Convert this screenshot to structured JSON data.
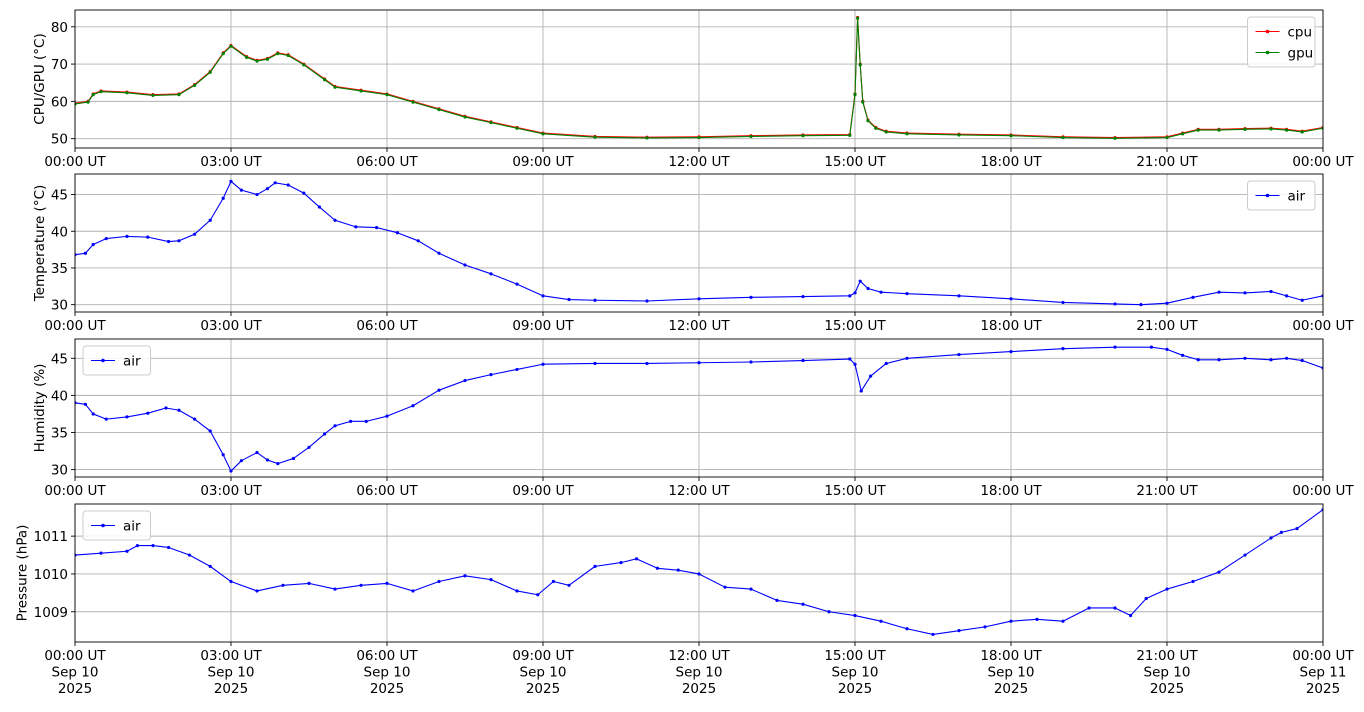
{
  "chart_data": [
    {
      "type": "line",
      "ylabel": "CPU/GPU (°C)",
      "xlim": [
        0,
        24
      ],
      "ylim": [
        47.5,
        84.5
      ],
      "yticks": [
        50,
        60,
        70,
        80
      ],
      "xtick_labels": [
        "00:00 UT",
        "03:00 UT",
        "06:00 UT",
        "09:00 UT",
        "12:00 UT",
        "15:00 UT",
        "18:00 UT",
        "21:00 UT",
        "00:00 UT"
      ],
      "grid": true,
      "legend": "top-right",
      "series": [
        {
          "name": "cpu",
          "color": "#ff0000",
          "x": [
            0,
            0.25,
            0.35,
            0.5,
            1.0,
            1.5,
            2.0,
            2.3,
            2.6,
            2.85,
            3.0,
            3.3,
            3.5,
            3.7,
            3.9,
            4.1,
            4.4,
            4.8,
            5.0,
            5.5,
            6.0,
            6.5,
            7.0,
            7.5,
            8.0,
            8.5,
            9.0,
            10,
            11,
            12,
            13,
            14,
            14.9,
            15.0,
            15.05,
            15.1,
            15.15,
            15.25,
            15.4,
            15.6,
            16,
            17,
            18,
            19,
            20,
            21,
            21.3,
            21.6,
            22,
            22.5,
            23,
            23.3,
            23.6,
            24
          ],
          "y": [
            59.5,
            60,
            62,
            62.8,
            62.5,
            61.8,
            62,
            64.5,
            68,
            73,
            75,
            72,
            71,
            71.5,
            73,
            72.5,
            70,
            66,
            64,
            63,
            62,
            60,
            58,
            56,
            54.5,
            53,
            51.5,
            50.6,
            50.4,
            50.5,
            50.8,
            51,
            51.1,
            62,
            82.5,
            70,
            60,
            55,
            53,
            52,
            51.5,
            51.2,
            51,
            50.5,
            50.3,
            50.5,
            51.5,
            52.5,
            52.5,
            52.7,
            52.8,
            52.5,
            52,
            53
          ]
        },
        {
          "name": "gpu",
          "color": "#008000",
          "x": [
            0,
            0.25,
            0.35,
            0.5,
            1.0,
            1.5,
            2.0,
            2.3,
            2.6,
            2.85,
            3.0,
            3.3,
            3.5,
            3.7,
            3.9,
            4.1,
            4.4,
            4.8,
            5.0,
            5.5,
            6.0,
            6.5,
            7.0,
            7.5,
            8.0,
            8.5,
            9.0,
            10,
            11,
            12,
            13,
            14,
            14.9,
            15.0,
            15.05,
            15.1,
            15.15,
            15.25,
            15.4,
            15.6,
            16,
            17,
            18,
            19,
            20,
            21,
            21.3,
            21.6,
            22,
            22.5,
            23,
            23.3,
            23.6,
            24
          ],
          "y": [
            59.3,
            59.8,
            61.8,
            62.6,
            62.3,
            61.6,
            61.8,
            64.3,
            67.8,
            72.8,
            74.8,
            71.8,
            70.8,
            71.3,
            72.8,
            72.3,
            69.8,
            65.8,
            63.8,
            62.8,
            61.8,
            59.8,
            57.8,
            55.8,
            54.3,
            52.8,
            51.3,
            50.4,
            50.2,
            50.3,
            50.6,
            50.8,
            50.9,
            61.8,
            82.3,
            69.8,
            59.8,
            54.8,
            52.8,
            51.8,
            51.3,
            51,
            50.8,
            50.3,
            50.1,
            50.3,
            51.3,
            52.3,
            52.3,
            52.5,
            52.6,
            52.3,
            51.8,
            52.8
          ]
        }
      ]
    },
    {
      "type": "line",
      "ylabel": "Temperature (°C)",
      "xlim": [
        0,
        24
      ],
      "ylim": [
        29,
        47.8
      ],
      "yticks": [
        30,
        35,
        40,
        45
      ],
      "xtick_labels": [
        "00:00 UT",
        "03:00 UT",
        "06:00 UT",
        "09:00 UT",
        "12:00 UT",
        "15:00 UT",
        "18:00 UT",
        "21:00 UT",
        "00:00 UT"
      ],
      "grid": true,
      "legend": "top-right",
      "series": [
        {
          "name": "air",
          "color": "#0000ff",
          "x": [
            0,
            0.2,
            0.35,
            0.6,
            1.0,
            1.4,
            1.8,
            2.0,
            2.3,
            2.6,
            2.85,
            3.0,
            3.2,
            3.5,
            3.7,
            3.85,
            4.1,
            4.4,
            4.7,
            5.0,
            5.4,
            5.8,
            6.2,
            6.6,
            7.0,
            7.5,
            8.0,
            8.5,
            9.0,
            9.5,
            10,
            11,
            12,
            13,
            14,
            14.9,
            15.0,
            15.1,
            15.25,
            15.5,
            16,
            17,
            18,
            19,
            20,
            20.5,
            21,
            21.5,
            22,
            22.5,
            23,
            23.3,
            23.6,
            24
          ],
          "y": [
            36.8,
            37,
            38.2,
            39,
            39.3,
            39.2,
            38.6,
            38.7,
            39.6,
            41.5,
            44.5,
            46.8,
            45.6,
            45,
            45.8,
            46.6,
            46.3,
            45.2,
            43.3,
            41.5,
            40.6,
            40.5,
            39.8,
            38.7,
            37,
            35.4,
            34.2,
            32.8,
            31.2,
            30.7,
            30.6,
            30.5,
            30.8,
            31,
            31.1,
            31.2,
            31.6,
            33.2,
            32.2,
            31.7,
            31.5,
            31.2,
            30.8,
            30.3,
            30.1,
            30.0,
            30.2,
            31,
            31.7,
            31.6,
            31.8,
            31.2,
            30.6,
            31.2
          ]
        }
      ]
    },
    {
      "type": "line",
      "ylabel": "Humidity (%)",
      "xlim": [
        0,
        24
      ],
      "ylim": [
        29,
        47.6
      ],
      "yticks": [
        30,
        35,
        40,
        45
      ],
      "xtick_labels": [
        "00:00 UT",
        "03:00 UT",
        "06:00 UT",
        "09:00 UT",
        "12:00 UT",
        "15:00 UT",
        "18:00 UT",
        "21:00 UT",
        "00:00 UT"
      ],
      "grid": true,
      "legend": "top-left",
      "series": [
        {
          "name": "air",
          "color": "#0000ff",
          "x": [
            0,
            0.2,
            0.35,
            0.6,
            1.0,
            1.4,
            1.75,
            2.0,
            2.3,
            2.6,
            2.85,
            3.0,
            3.2,
            3.5,
            3.7,
            3.9,
            4.2,
            4.5,
            4.8,
            5.0,
            5.3,
            5.6,
            6.0,
            6.5,
            7.0,
            7.5,
            8.0,
            8.5,
            9.0,
            10,
            11,
            12,
            13,
            14,
            14.9,
            15.0,
            15.12,
            15.3,
            15.6,
            16,
            17,
            18,
            19,
            20,
            20.7,
            21,
            21.3,
            21.6,
            22,
            22.5,
            23,
            23.3,
            23.6,
            24
          ],
          "y": [
            39,
            38.8,
            37.5,
            36.8,
            37.1,
            37.6,
            38.3,
            38,
            36.8,
            35.2,
            32,
            29.8,
            31.2,
            32.3,
            31.3,
            30.8,
            31.5,
            33,
            34.8,
            35.9,
            36.5,
            36.5,
            37.2,
            38.6,
            40.7,
            42,
            42.8,
            43.5,
            44.2,
            44.3,
            44.3,
            44.4,
            44.5,
            44.7,
            44.9,
            44.2,
            40.6,
            42.6,
            44.3,
            45,
            45.5,
            45.9,
            46.3,
            46.5,
            46.5,
            46.2,
            45.4,
            44.8,
            44.8,
            45,
            44.8,
            45,
            44.7,
            43.7
          ]
        }
      ]
    },
    {
      "type": "line",
      "ylabel": "Pressure (hPa)",
      "xlim": [
        0,
        24
      ],
      "ylim": [
        1008.2,
        1011.85
      ],
      "yticks": [
        1009,
        1010,
        1011
      ],
      "xtick_labels": [
        "00:00 UT\nSep 10\n2025",
        "03:00 UT\nSep 10\n2025",
        "06:00 UT\nSep 10\n2025",
        "09:00 UT\nSep 10\n2025",
        "12:00 UT\nSep 10\n2025",
        "15:00 UT\nSep 10\n2025",
        "18:00 UT\nSep 10\n2025",
        "21:00 UT\nSep 10\n2025",
        "00:00 UT\nSep 11\n2025"
      ],
      "grid": true,
      "legend": "top-left",
      "series": [
        {
          "name": "air",
          "color": "#0000ff",
          "x": [
            0,
            0.5,
            1.0,
            1.2,
            1.5,
            1.8,
            2.2,
            2.6,
            3.0,
            3.5,
            4.0,
            4.5,
            5.0,
            5.5,
            6.0,
            6.5,
            7.0,
            7.5,
            8.0,
            8.5,
            8.9,
            9.2,
            9.5,
            10.0,
            10.5,
            10.8,
            11.2,
            11.6,
            12.0,
            12.5,
            13.0,
            13.5,
            14.0,
            14.5,
            15.0,
            15.5,
            16.0,
            16.5,
            17.0,
            17.5,
            18.0,
            18.5,
            19.0,
            19.5,
            20.0,
            20.3,
            20.6,
            21.0,
            21.5,
            22.0,
            22.5,
            23.0,
            23.2,
            23.5,
            24
          ],
          "y": [
            1010.5,
            1010.55,
            1010.6,
            1010.75,
            1010.75,
            1010.7,
            1010.5,
            1010.2,
            1009.8,
            1009.55,
            1009.7,
            1009.75,
            1009.6,
            1009.7,
            1009.75,
            1009.55,
            1009.8,
            1009.95,
            1009.85,
            1009.55,
            1009.45,
            1009.8,
            1009.7,
            1010.2,
            1010.3,
            1010.4,
            1010.15,
            1010.1,
            1010.0,
            1009.65,
            1009.6,
            1009.3,
            1009.2,
            1009.0,
            1008.9,
            1008.75,
            1008.55,
            1008.4,
            1008.5,
            1008.6,
            1008.75,
            1008.8,
            1008.75,
            1009.1,
            1009.1,
            1008.9,
            1009.35,
            1009.6,
            1009.8,
            1010.05,
            1010.5,
            1010.95,
            1011.1,
            1011.2,
            1011.7
          ]
        }
      ]
    }
  ]
}
